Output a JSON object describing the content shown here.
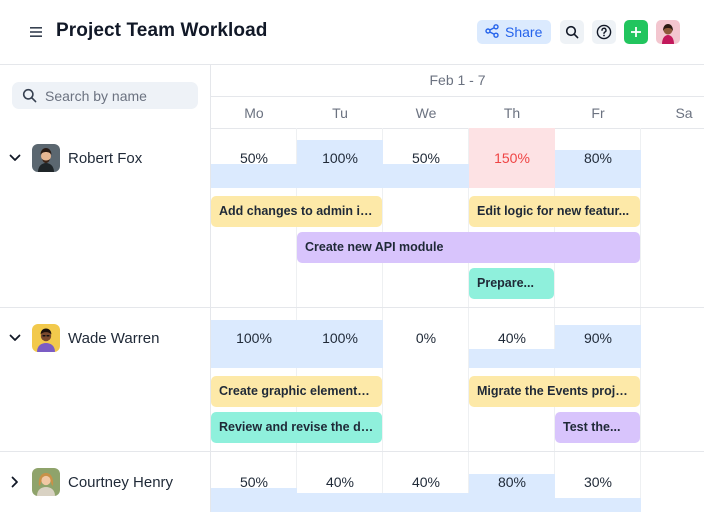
{
  "header": {
    "title": "Project Team Workload",
    "share_label": "Share"
  },
  "search": {
    "placeholder": "Search by name"
  },
  "timeline": {
    "range": "Feb 1 - 7",
    "days": [
      "Mo",
      "Tu",
      "We",
      "Th",
      "Fr",
      "Sa"
    ]
  },
  "people": [
    {
      "name": "Robert Fox",
      "expanded": true,
      "workload": [
        "50%",
        "100%",
        "50%",
        "150%",
        "80%"
      ],
      "workload_level": [
        0.5,
        1.0,
        0.5,
        1.5,
        0.8
      ],
      "tasks": [
        {
          "label": "Add changes to admin in...",
          "color": "yellow"
        },
        {
          "label": "Edit logic for new featur...",
          "color": "yellow"
        },
        {
          "label": "Create new API module",
          "color": "purple"
        },
        {
          "label": "Prepare...",
          "color": "teal"
        }
      ]
    },
    {
      "name": "Wade Warren",
      "expanded": true,
      "workload": [
        "100%",
        "100%",
        "0%",
        "40%",
        "90%"
      ],
      "workload_level": [
        1.0,
        1.0,
        0.0,
        0.4,
        0.9
      ],
      "tasks": [
        {
          "label": "Create graphic elements...",
          "color": "yellow"
        },
        {
          "label": "Migrate the Events proje...",
          "color": "yellow"
        },
        {
          "label": "Review and revise the de...",
          "color": "teal"
        },
        {
          "label": "Test the...",
          "color": "purple"
        }
      ]
    },
    {
      "name": "Courtney Henry",
      "expanded": false,
      "workload": [
        "50%",
        "40%",
        "40%",
        "80%",
        "30%"
      ],
      "workload_level": [
        0.5,
        0.4,
        0.4,
        0.8,
        0.3
      ]
    }
  ],
  "colors": {
    "accent": "#2563eb",
    "fill": "#dbeafe",
    "over": "#fde2e4",
    "task_yellow": "#fde9a8",
    "task_purple": "#d8c4fc",
    "task_teal": "#8ff0dc",
    "add_button": "#22c55e"
  }
}
